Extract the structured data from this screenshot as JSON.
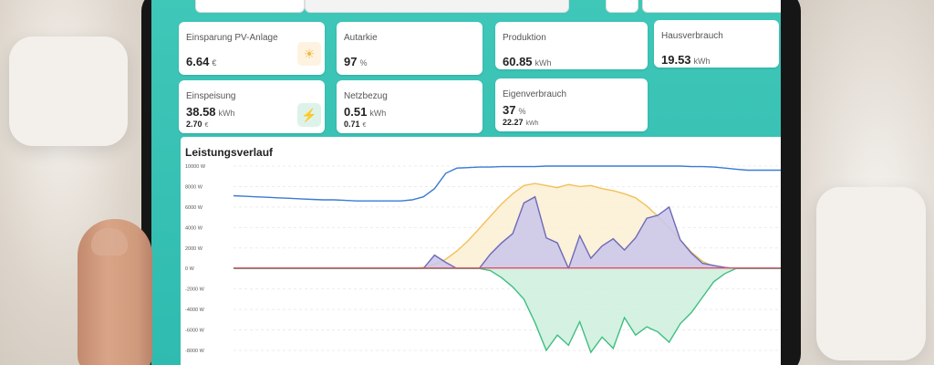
{
  "cards": [
    {
      "id": "einsparung",
      "label": "Einsparung PV-Anlage",
      "value": "6.64",
      "unit": "€",
      "icon": "sun-icon",
      "icon_color": "#f4b942",
      "icon_bg": "#fdf3e0"
    },
    {
      "id": "autarkie",
      "label": "Autarkie",
      "value": "97",
      "unit": "%",
      "icon": "recycle-plug-icon",
      "icon_color": "#2aa87a",
      "icon_bg": "#ddf3ea"
    },
    {
      "id": "produktion",
      "label": "Produktion",
      "value": "60.85",
      "unit": "kWh",
      "icon": "sun-icon",
      "icon_color": "#f4b942",
      "icon_bg": "#fdf3e0"
    },
    {
      "id": "hausverbrauch",
      "label": "Hausverbrauch",
      "value": "19.53",
      "unit": "kWh",
      "icon": "house-icon",
      "icon_color": "#3a7bd5",
      "icon_bg": "#e4eefb"
    },
    {
      "id": "einspeisung",
      "label": "Einspeisung",
      "value": "38.58",
      "unit": "kWh",
      "sub_value": "2.70",
      "sub_unit": "€",
      "icon": "grid-feed-icon",
      "icon_color": "#2aa87a",
      "icon_bg": "#ddf3ea"
    },
    {
      "id": "netzbezug",
      "label": "Netzbezug",
      "value": "0.51",
      "unit": "kWh",
      "sub_value": "0.71",
      "sub_unit": "€",
      "icon": "power-pole-icon",
      "icon_color": "#e0506a",
      "icon_bg": "#fbe3e7"
    },
    {
      "id": "eigenverbrauch",
      "label": "Eigenverbrauch",
      "value": "37",
      "unit": "%",
      "sub_value": "22.27",
      "sub_unit": "kWh",
      "icon": "cycle-icon",
      "icon_color": "#3a9ad5",
      "icon_bg": "#e2f1fb"
    }
  ],
  "chart_data": {
    "type": "area",
    "title": "Leistungsverlauf",
    "y_ticks": [
      "10000 W",
      "8000 W",
      "6000 W",
      "4000 W",
      "2000 W",
      "0 W",
      "-2000 W",
      "-4000 W",
      "-6000 W",
      "-8000 W"
    ],
    "ylim": [
      -8000,
      10000
    ],
    "x_points": 50,
    "grid": true,
    "series": [
      {
        "color": "#f2c15a",
        "fill": "#fbeed2",
        "values": [
          0,
          0,
          0,
          0,
          0,
          0,
          0,
          0,
          0,
          0,
          0,
          0,
          0,
          0,
          0,
          0,
          0,
          100,
          400,
          900,
          1700,
          2700,
          3900,
          5100,
          6300,
          7300,
          8100,
          8300,
          8100,
          7900,
          8200,
          8000,
          8100,
          7800,
          7600,
          7300,
          6900,
          6100,
          5100,
          4000,
          2800,
          1600,
          700,
          200,
          0,
          0,
          0,
          0,
          0,
          0
        ]
      },
      {
        "color": "#6d6ab8",
        "fill": "#c9c6ea",
        "values": [
          0,
          0,
          0,
          0,
          0,
          0,
          0,
          0,
          0,
          0,
          0,
          0,
          0,
          0,
          0,
          0,
          0,
          0,
          1300,
          600,
          0,
          0,
          0,
          1400,
          2500,
          3400,
          6400,
          7000,
          3000,
          2500,
          0,
          3200,
          1000,
          2200,
          2900,
          1800,
          3000,
          4900,
          5200,
          6000,
          2800,
          1500,
          500,
          300,
          100,
          0,
          0,
          0,
          0,
          0
        ]
      },
      {
        "color": "#3a7bd5",
        "fill": "none",
        "values": [
          7100,
          7050,
          7000,
          6950,
          6900,
          6850,
          6800,
          6750,
          6700,
          6700,
          6650,
          6600,
          6600,
          6600,
          6600,
          6600,
          6700,
          7000,
          7800,
          9300,
          9800,
          9850,
          9900,
          9900,
          9950,
          9950,
          9950,
          9950,
          10000,
          10000,
          10000,
          10000,
          10000,
          10000,
          10000,
          10000,
          10000,
          10000,
          10000,
          10000,
          10000,
          9950,
          9950,
          9900,
          9800,
          9700,
          9600,
          9600,
          9600,
          9600
        ]
      },
      {
        "color": "#3fbf80",
        "fill": "#cdeedd",
        "values": [
          0,
          0,
          0,
          0,
          0,
          0,
          0,
          0,
          0,
          0,
          0,
          0,
          0,
          0,
          0,
          0,
          0,
          0,
          0,
          0,
          0,
          0,
          0,
          -200,
          -900,
          -1800,
          -3000,
          -5300,
          -8000,
          -6500,
          -7500,
          -5200,
          -8200,
          -6700,
          -7800,
          -4800,
          -6500,
          -5700,
          -6200,
          -7200,
          -5400,
          -4300,
          -2800,
          -1300,
          -500,
          0,
          0,
          0,
          0,
          0
        ]
      },
      {
        "color": "#e0506a",
        "fill": "none",
        "values": [
          50,
          50,
          50,
          50,
          50,
          50,
          50,
          50,
          50,
          50,
          50,
          50,
          50,
          50,
          50,
          50,
          50,
          50,
          50,
          50,
          50,
          50,
          50,
          50,
          50,
          50,
          50,
          50,
          50,
          50,
          50,
          50,
          50,
          50,
          50,
          50,
          50,
          50,
          50,
          50,
          50,
          50,
          50,
          50,
          50,
          50,
          50,
          50,
          50,
          50
        ]
      }
    ]
  }
}
